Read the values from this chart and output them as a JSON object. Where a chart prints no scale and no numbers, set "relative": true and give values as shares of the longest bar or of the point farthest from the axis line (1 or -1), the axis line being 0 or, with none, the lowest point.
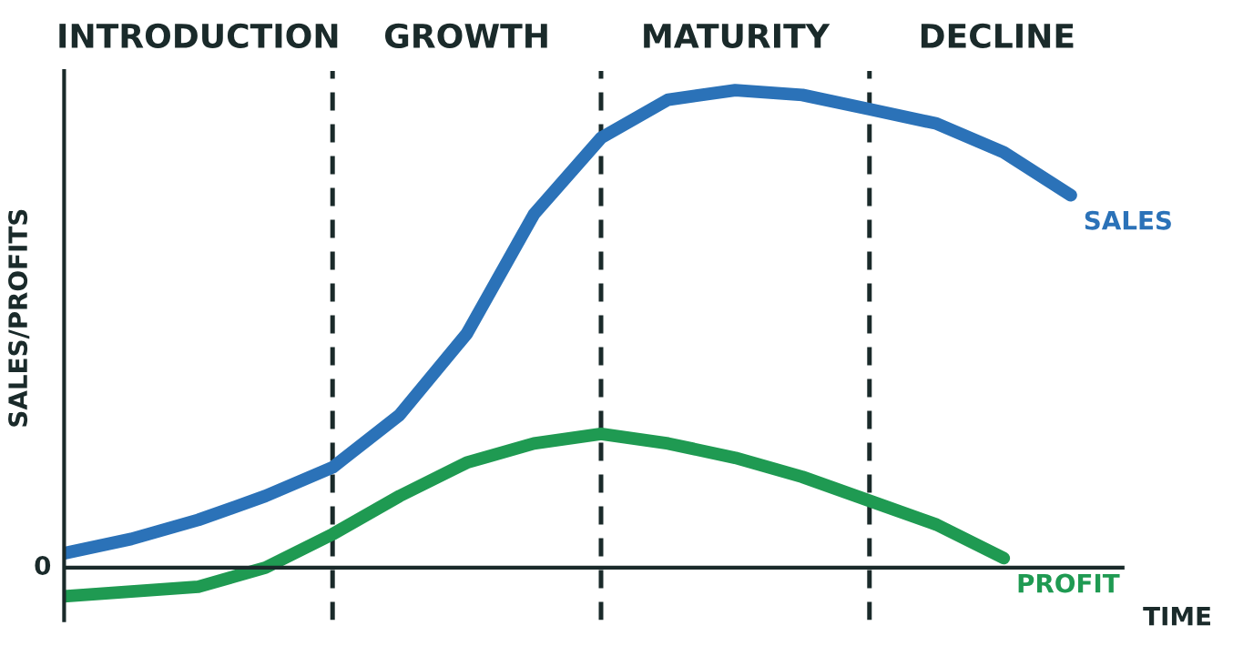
{
  "chart_data": {
    "type": "line",
    "relative": true,
    "xlabel": "TIME",
    "ylabel": "SALES/PROFITS",
    "categories": [
      null,
      null,
      null,
      null,
      null,
      null,
      null,
      null,
      null,
      null,
      null,
      null,
      null,
      null,
      null,
      null
    ],
    "series": [
      {
        "name": "SALES",
        "color": "#2b72b8",
        "values": [
          0.03,
          0.06,
          0.1,
          0.15,
          0.21,
          0.32,
          0.49,
          0.74,
          0.9,
          0.98,
          1.0,
          0.99,
          0.96,
          0.93,
          0.87,
          0.78
        ]
      },
      {
        "name": "PROFIT",
        "color": "#1f9a52",
        "values": [
          -0.06,
          -0.05,
          -0.04,
          0.0,
          0.07,
          0.15,
          0.22,
          0.26,
          0.28,
          0.26,
          0.23,
          0.19,
          0.14,
          0.09,
          0.02,
          null
        ]
      }
    ],
    "grid": "x",
    "annotations": [
      "INTRODUCTION",
      "GROWTH",
      "MATURITY",
      "DECLINE",
      "0"
    ],
    "legend": false,
    "marker": "none",
    "line_style": "solid"
  }
}
